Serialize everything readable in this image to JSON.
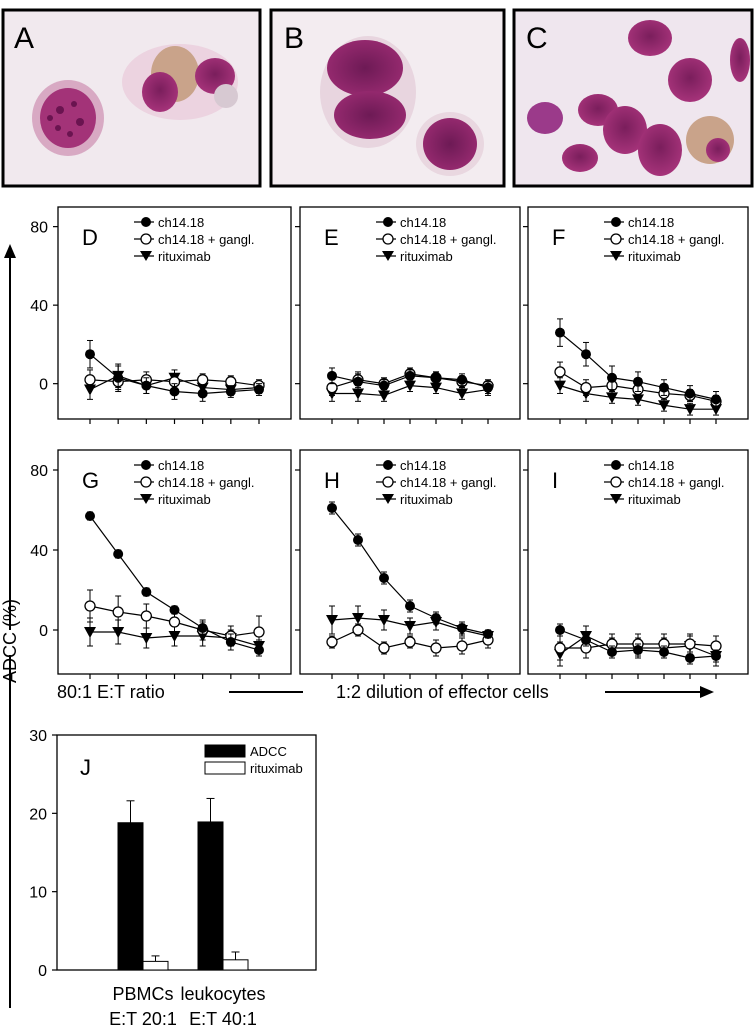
{
  "figure": {
    "y_axis_label": "ADCC (%)",
    "x_axis_left_label": "80:1 E:T ratio",
    "x_axis_right_label": "1:2 dilution of effector cells"
  },
  "micrographs": [
    {
      "letter": "A"
    },
    {
      "letter": "B"
    },
    {
      "letter": "C"
    }
  ],
  "legend_items": [
    "ch14.18",
    "ch14.18 + gangl.",
    "rituximab"
  ],
  "chart_data": [
    {
      "panel": "D",
      "type": "line",
      "x": [
        1,
        2,
        3,
        4,
        5,
        6,
        7
      ],
      "y_ticks": [
        0,
        40,
        80
      ],
      "ylim": [
        -18,
        90
      ],
      "series": [
        {
          "name": "ch14.18",
          "marker": "filled-circle",
          "values": [
            15,
            3,
            -1,
            -4,
            -5,
            -4,
            -3
          ],
          "err": [
            7,
            6,
            4,
            4,
            4,
            3,
            3
          ]
        },
        {
          "name": "ch14.18 + gangl.",
          "marker": "open-circle",
          "values": [
            2,
            1,
            2,
            1,
            2,
            1,
            -1
          ],
          "err": [
            5,
            5,
            4,
            4,
            3,
            3,
            3
          ]
        },
        {
          "name": "rituximab",
          "marker": "filled-triangle",
          "values": [
            -3,
            4,
            -1,
            3,
            -2,
            -3,
            -2
          ],
          "err": [
            5,
            6,
            4,
            4,
            4,
            3,
            3
          ]
        }
      ]
    },
    {
      "panel": "E",
      "type": "line",
      "x": [
        1,
        2,
        3,
        4,
        5,
        6,
        7
      ],
      "y_ticks": [
        0,
        40,
        80
      ],
      "ylim": [
        -18,
        90
      ],
      "series": [
        {
          "name": "ch14.18",
          "marker": "filled-circle",
          "values": [
            4,
            1,
            -1,
            4,
            3,
            2,
            -2
          ],
          "err": [
            4,
            4,
            3,
            3,
            3,
            3,
            3
          ]
        },
        {
          "name": "ch14.18 + gangl.",
          "marker": "open-circle",
          "values": [
            -2,
            2,
            0,
            5,
            3,
            1,
            -1
          ],
          "err": [
            4,
            4,
            3,
            3,
            3,
            3,
            3
          ]
        },
        {
          "name": "rituximab",
          "marker": "filled-triangle",
          "values": [
            -5,
            -5,
            -6,
            -1,
            -2,
            -5,
            -3
          ],
          "err": [
            4,
            4,
            3,
            3,
            3,
            3,
            3
          ]
        }
      ]
    },
    {
      "panel": "F",
      "type": "line",
      "x": [
        1,
        2,
        3,
        4,
        5,
        6,
        7
      ],
      "y_ticks": [
        0,
        40,
        80
      ],
      "ylim": [
        -18,
        90
      ],
      "series": [
        {
          "name": "ch14.18",
          "marker": "filled-circle",
          "values": [
            26,
            15,
            3,
            1,
            -2,
            -5,
            -8
          ],
          "err": [
            7,
            6,
            6,
            5,
            4,
            4,
            4
          ]
        },
        {
          "name": "ch14.18 + gangl.",
          "marker": "open-circle",
          "values": [
            6,
            -2,
            -1,
            -3,
            -5,
            -6,
            -9
          ],
          "err": [
            5,
            4,
            4,
            4,
            4,
            3,
            3
          ]
        },
        {
          "name": "rituximab",
          "marker": "filled-triangle",
          "values": [
            -1,
            -5,
            -7,
            -8,
            -11,
            -13,
            -13
          ],
          "err": [
            4,
            4,
            3,
            3,
            3,
            3,
            3
          ]
        }
      ]
    },
    {
      "panel": "G",
      "type": "line",
      "x": [
        1,
        2,
        3,
        4,
        5,
        6,
        7
      ],
      "y_ticks": [
        0,
        40,
        80
      ],
      "ylim": [
        -22,
        90
      ],
      "series": [
        {
          "name": "ch14.18",
          "marker": "filled-circle",
          "values": [
            57,
            38,
            19,
            10,
            1,
            -6,
            -10
          ],
          "err": [
            2,
            2,
            2,
            2,
            3,
            4,
            3
          ]
        },
        {
          "name": "ch14.18 + gangl.",
          "marker": "open-circle",
          "values": [
            12,
            9,
            7,
            4,
            0,
            -3,
            -1
          ],
          "err": [
            8,
            8,
            6,
            5,
            5,
            5,
            8
          ]
        },
        {
          "name": "rituximab",
          "marker": "filled-triangle",
          "values": [
            -1,
            -1,
            -4,
            -3,
            -3,
            -4,
            -8
          ],
          "err": [
            7,
            6,
            5,
            5,
            5,
            4,
            3
          ]
        }
      ]
    },
    {
      "panel": "H",
      "type": "line",
      "x": [
        1,
        2,
        3,
        4,
        5,
        6,
        7
      ],
      "y_ticks": [
        0,
        40,
        80
      ],
      "ylim": [
        -22,
        90
      ],
      "series": [
        {
          "name": "ch14.18",
          "marker": "filled-circle",
          "values": [
            61,
            45,
            26,
            12,
            6,
            1,
            -2
          ],
          "err": [
            3,
            3,
            3,
            3,
            3,
            3,
            2
          ]
        },
        {
          "name": "ch14.18 + gangl.",
          "marker": "open-circle",
          "values": [
            -6,
            0,
            -9,
            -6,
            -9,
            -8,
            -5
          ],
          "err": [
            3,
            3,
            3,
            3,
            4,
            4,
            4
          ]
        },
        {
          "name": "rituximab",
          "marker": "filled-triangle",
          "values": [
            5,
            6,
            5,
            2,
            4,
            0,
            -3
          ],
          "err": [
            7,
            6,
            5,
            4,
            4,
            3,
            3
          ]
        }
      ]
    },
    {
      "panel": "I",
      "type": "line",
      "x": [
        1,
        2,
        3,
        4,
        5,
        6,
        7
      ],
      "y_ticks": [
        0,
        40,
        80
      ],
      "ylim": [
        -22,
        90
      ],
      "series": [
        {
          "name": "ch14.18",
          "marker": "filled-circle",
          "values": [
            0,
            -5,
            -11,
            -10,
            -11,
            -14,
            -13
          ],
          "err": [
            3,
            3,
            3,
            3,
            3,
            3,
            3
          ]
        },
        {
          "name": "ch14.18 + gangl.",
          "marker": "open-circle",
          "values": [
            -9,
            -9,
            -7,
            -7,
            -7,
            -7,
            -8
          ],
          "err": [
            6,
            5,
            5,
            5,
            5,
            5,
            5
          ]
        },
        {
          "name": "rituximab",
          "marker": "filled-triangle",
          "values": [
            -12,
            -3,
            -9,
            -9,
            -9,
            -8,
            -13
          ],
          "err": [
            6,
            5,
            5,
            5,
            5,
            5,
            5
          ]
        }
      ]
    },
    {
      "panel": "J",
      "type": "bar",
      "categories": [
        "PBMCs\nE:T 20:1",
        "leukocytes\nE:T 40:1"
      ],
      "ylim": [
        0,
        30
      ],
      "y_ticks": [
        0,
        10,
        20,
        30
      ],
      "series": [
        {
          "name": "ADCC",
          "color": "#000000",
          "values": [
            18.8,
            18.9
          ],
          "err": [
            2.8,
            3.0
          ]
        },
        {
          "name": "rituximab",
          "color": "#ffffff",
          "values": [
            1.1,
            1.3
          ],
          "err": [
            0.7,
            1.0
          ]
        }
      ]
    }
  ]
}
